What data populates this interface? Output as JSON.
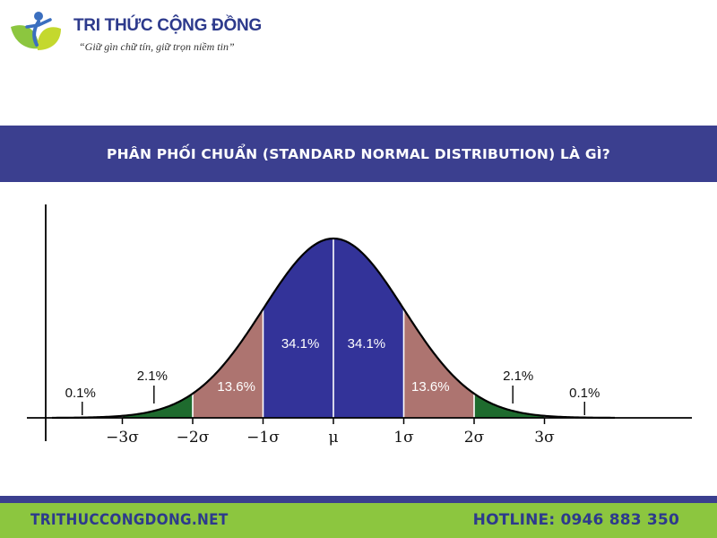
{
  "header": {
    "brand_name": "TRI THỨC CỘNG ĐỒNG",
    "slogan": "“Giữ gìn chữ tín, giữ trọn niềm tin”",
    "logo_icon": "person-with-leaves-logo"
  },
  "banner": {
    "title": "PHÂN PHỐI CHUẨN (STANDARD NORMAL DISTRIBUTION) LÀ GÌ?"
  },
  "colors": {
    "banner": "#3b3f8f",
    "footer": "#8cc63f",
    "footer_text": "#2d3a8c",
    "center_region": "#333399",
    "mid_region": "#ad7470",
    "tail_region": "#1e6b2e"
  },
  "chart_data": {
    "type": "area",
    "title": "",
    "xlabel": "",
    "ylabel": "",
    "x_unit": "standard deviations from the mean",
    "xlim": [
      -4,
      4
    ],
    "curve": "standard normal density",
    "x_ticks": [
      {
        "x": -3,
        "label": "−3σ"
      },
      {
        "x": -2,
        "label": "−2σ"
      },
      {
        "x": -1,
        "label": "−1σ"
      },
      {
        "x": 0,
        "label": "μ"
      },
      {
        "x": 1,
        "label": "1σ"
      },
      {
        "x": 2,
        "label": "2σ"
      },
      {
        "x": 3,
        "label": "3σ"
      }
    ],
    "regions": [
      {
        "from": -3,
        "to": -2,
        "value": 2.1,
        "label": "2.1%",
        "color": "#1e6b2e"
      },
      {
        "from": -2,
        "to": -1,
        "value": 13.6,
        "label": "13.6%",
        "color": "#ad7470"
      },
      {
        "from": -1,
        "to": 0,
        "value": 34.1,
        "label": "34.1%",
        "color": "#333399"
      },
      {
        "from": 0,
        "to": 1,
        "value": 34.1,
        "label": "34.1%",
        "color": "#333399"
      },
      {
        "from": 1,
        "to": 2,
        "value": 13.6,
        "label": "13.6%",
        "color": "#ad7470"
      },
      {
        "from": 2,
        "to": 3,
        "value": 2.1,
        "label": "2.1%",
        "color": "#1e6b2e"
      }
    ],
    "tails": [
      {
        "side": "left",
        "value": 0.1,
        "label": "0.1%"
      },
      {
        "side": "right",
        "value": 0.1,
        "label": "0.1%"
      }
    ]
  },
  "footer": {
    "website": "TRITHUCCONGDONG.NET",
    "hotline": "HOTLINE: 0946 883 350"
  }
}
